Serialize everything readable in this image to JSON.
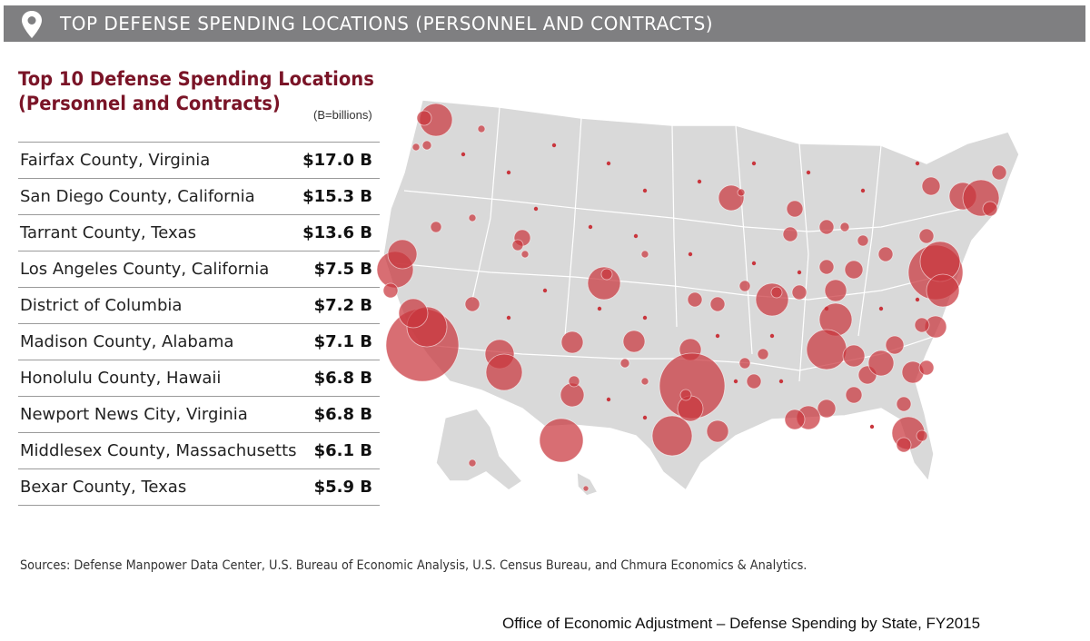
{
  "banner": {
    "title": "TOP DEFENSE SPENDING LOCATIONS (PERSONNEL AND CONTRACTS)",
    "icon": "location-pin-icon"
  },
  "heading": {
    "line1": "Top 10 Defense Spending Locations",
    "line2": "(Personnel and Contracts)"
  },
  "units": "(B=billions)",
  "locations": [
    {
      "name": "Fairfax County, Virginia",
      "value": "$17.0 B"
    },
    {
      "name": "San Diego County, California",
      "value": "$15.3 B"
    },
    {
      "name": "Tarrant County, Texas",
      "value": "$13.6 B"
    },
    {
      "name": "Los Angeles County, California",
      "value": "$7.5 B"
    },
    {
      "name": "District of Columbia",
      "value": "$7.2 B"
    },
    {
      "name": "Madison County, Alabama",
      "value": "$7.1 B"
    },
    {
      "name": "Honolulu County, Hawaii",
      "value": "$6.8 B"
    },
    {
      "name": "Newport News City, Virginia",
      "value": "$6.8 B"
    },
    {
      "name": "Middlesex County, Massachusetts",
      "value": "$6.1 B"
    },
    {
      "name": "Bexar County, Texas",
      "value": "$5.9 B"
    }
  ],
  "colors": {
    "banner": "#7f7f81",
    "heading": "#7a1427",
    "bubble": "#c9363d",
    "land": "#d8d8d8"
  },
  "sources": "Sources: Defense Manpower Data Center, U.S. Bureau of Economic Analysis, U.S. Census Bureau, and Chmura Economics & Analytics.",
  "credit": "Office of Economic Adjustment – Defense Spending by State, FY2015"
}
